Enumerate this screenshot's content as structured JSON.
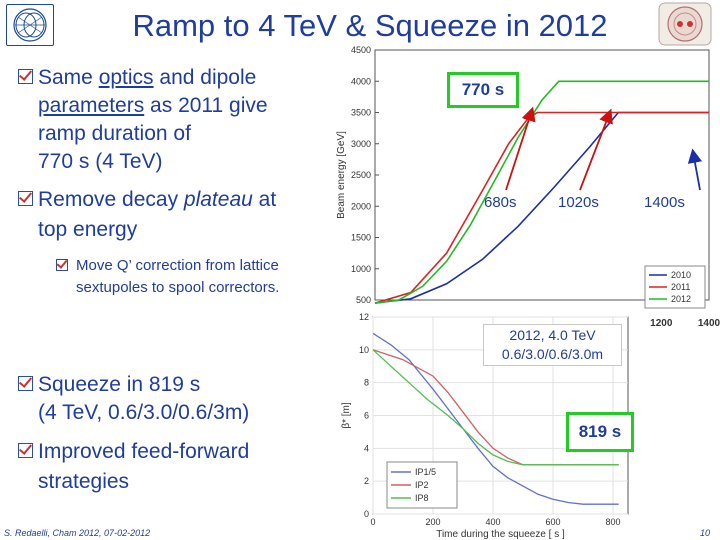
{
  "slide": {
    "title": "Ramp to 4 TeV & Squeeze in 2012",
    "bullets": [
      {
        "lines": [
          "Same ",
          "optics",
          " and dipole",
          "parameters",
          " as 2011 give",
          "ramp duration of",
          "770 s (4 TeV)"
        ]
      },
      {
        "lines": [
          "Remove decay ",
          "plateau",
          " at",
          "top energy"
        ]
      },
      {
        "lines": [
          "Squeeze in 819 s",
          "(4 TeV, 0.6/3.0/0.6/3m)"
        ]
      },
      {
        "lines": [
          "Improved feed-forward",
          "strategies"
        ]
      }
    ],
    "sub_bullet": {
      "lines": [
        "Move Q’ correction from lattice",
        "sextupoles to spool correctors."
      ]
    },
    "footer_left": "S. Redaelli, Cham 2012, 07-02-2012",
    "page_number": "10"
  },
  "annotations": {
    "ramp_box": "770 s",
    "t680": "680s",
    "t1020": "1020s",
    "t1400": "1400s",
    "squeeze_params_1": "2012, 4.0 TeV",
    "squeeze_params_2": "0.6/3.0/0.6/3.0m",
    "squeeze_box": "819 s"
  },
  "colors": {
    "title_blue": "#1f3da0",
    "box_green": "#22cc22",
    "arrow_red": "#cc1111",
    "series_2010": "#1a2ea8",
    "series_2011": "#e02020",
    "series_2012": "#22bb22"
  },
  "chart_data": [
    {
      "type": "line",
      "title": "",
      "xlabel": "",
      "ylabel": "Beam energy [GeV]",
      "xlim": [
        0,
        1400
      ],
      "ylim": [
        500,
        4500
      ],
      "x_ticks": [
        "1200",
        "1400"
      ],
      "y_ticks": [
        "500",
        "1000",
        "1500",
        "2000",
        "2500",
        "3000",
        "3500",
        "4000",
        "4500"
      ],
      "legend": [
        "2010",
        "2011",
        "2012"
      ],
      "series": [
        {
          "name": "2010",
          "x": [
            0,
            150,
            300,
            450,
            600,
            750,
            900,
            1020,
            1400
          ],
          "y": [
            450,
            520,
            760,
            1150,
            1680,
            2300,
            2950,
            3500,
            3500
          ]
        },
        {
          "name": "2011",
          "x": [
            0,
            150,
            300,
            450,
            560,
            640,
            680,
            1400
          ],
          "y": [
            450,
            620,
            1250,
            2250,
            3000,
            3400,
            3500,
            3500
          ]
        },
        {
          "name": "2012",
          "x": [
            0,
            100,
            200,
            300,
            400,
            500,
            600,
            700,
            770,
            1400
          ],
          "y": [
            450,
            500,
            720,
            1120,
            1700,
            2400,
            3100,
            3700,
            4000,
            4000
          ]
        }
      ]
    },
    {
      "type": "line",
      "title": "",
      "xlabel": "Time during the squeeze [ s ]",
      "ylabel": "β* [m]",
      "xlim": [
        0,
        850
      ],
      "ylim": [
        0,
        12
      ],
      "x_ticks": [
        "0",
        "200",
        "400",
        "600",
        "800"
      ],
      "y_ticks": [
        "0",
        "2",
        "4",
        "6",
        "8",
        "10",
        "12"
      ],
      "legend": [
        "IP1/5",
        "IP2",
        "IP8"
      ],
      "series": [
        {
          "name": "IP1/5",
          "x": [
            0,
            60,
            120,
            200,
            250,
            300,
            350,
            400,
            450,
            500,
            550,
            600,
            650,
            700,
            819
          ],
          "y": [
            11,
            10.3,
            9.4,
            7.6,
            6.4,
            5.2,
            4.0,
            2.9,
            2.2,
            1.7,
            1.2,
            0.9,
            0.7,
            0.6,
            0.6
          ]
        },
        {
          "name": "IP2",
          "x": [
            0,
            100,
            200,
            250,
            300,
            350,
            400,
            450,
            500,
            550,
            600,
            650,
            700,
            819
          ],
          "y": [
            10,
            9.4,
            8.4,
            7.4,
            6.2,
            5.0,
            4.0,
            3.4,
            3.0,
            3.0,
            3.0,
            3.0,
            3.0,
            3.0
          ]
        },
        {
          "name": "IP8",
          "x": [
            0,
            60,
            120,
            180,
            250,
            300,
            350,
            400,
            450,
            500,
            600,
            819
          ],
          "y": [
            10,
            9.0,
            8.0,
            7.0,
            6.0,
            5.2,
            4.3,
            3.6,
            3.2,
            3.0,
            3.0,
            3.0
          ]
        }
      ]
    }
  ]
}
